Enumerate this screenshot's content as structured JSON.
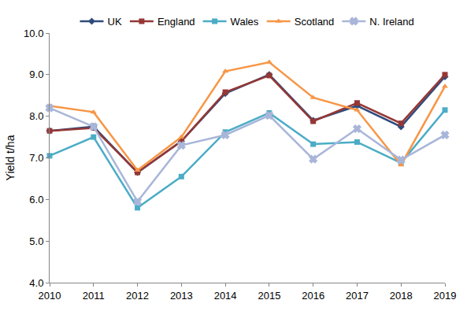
{
  "chart_data": {
    "type": "line",
    "y_label": "Yield t/ha",
    "x": [
      2010,
      2011,
      2012,
      2013,
      2014,
      2015,
      2016,
      2017,
      2018,
      2019
    ],
    "series": [
      {
        "name": "UK",
        "color": "#2F4B7C",
        "marker": "diamond",
        "values": [
          7.65,
          7.75,
          6.65,
          7.4,
          8.55,
          9.0,
          7.9,
          8.25,
          7.75,
          8.95
        ]
      },
      {
        "name": "England",
        "color": "#953735",
        "marker": "square",
        "values": [
          7.65,
          7.72,
          6.65,
          7.4,
          8.58,
          8.98,
          7.88,
          8.32,
          7.83,
          9.0
        ]
      },
      {
        "name": "Wales",
        "color": "#4BACC6",
        "marker": "square",
        "values": [
          7.05,
          7.5,
          5.8,
          6.55,
          7.62,
          8.08,
          7.33,
          7.38,
          6.88,
          8.15
        ]
      },
      {
        "name": "Scotland",
        "color": "#F79646",
        "marker": "triangle-up",
        "values": [
          8.25,
          8.1,
          6.7,
          7.5,
          9.08,
          9.3,
          8.45,
          8.15,
          6.83,
          8.72
        ]
      },
      {
        "name": "N. Ireland",
        "color": "#A9B6D9",
        "marker": "x",
        "values": [
          8.2,
          7.75,
          5.95,
          7.3,
          7.55,
          8.02,
          6.97,
          7.7,
          6.95,
          7.55
        ]
      }
    ],
    "xlim": [
      2010,
      2019
    ],
    "xticks": [
      2010,
      2011,
      2012,
      2013,
      2014,
      2015,
      2016,
      2017,
      2018,
      2019
    ],
    "ylim": [
      4,
      10
    ],
    "yticks": [
      {
        "value": 4,
        "label": "4.0"
      },
      {
        "value": 5,
        "label": "5.0"
      },
      {
        "value": 6,
        "label": "6.0"
      },
      {
        "value": 7,
        "label": "7.0"
      },
      {
        "value": 8,
        "label": "8.0"
      },
      {
        "value": 9,
        "label": "9.0"
      },
      {
        "value": 10,
        "label": "10.0"
      }
    ],
    "grid": false,
    "legend": "top"
  }
}
